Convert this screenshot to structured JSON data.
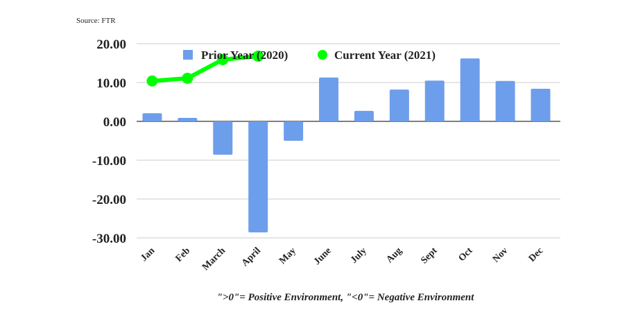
{
  "source": "Source: FTR",
  "footnote": "\">0\"= Positive Environment, \"<0\"= Negative Environment",
  "chart_data": {
    "type": "bar",
    "categories": [
      "Jan",
      "Feb",
      "March",
      "April",
      "May",
      "June",
      "July",
      "Aug",
      "Sept",
      "Oct",
      "Nov",
      "Dec"
    ],
    "series": [
      {
        "name": "Prior Year (2020)",
        "type": "bar",
        "color": "#6d9eeb",
        "values": [
          2.1,
          0.9,
          -8.6,
          -28.6,
          -5.0,
          11.3,
          2.7,
          8.2,
          10.5,
          16.2,
          10.4,
          8.4
        ]
      },
      {
        "name": "Current Year (2021)",
        "type": "line",
        "color": "#00ff00",
        "values": [
          10.4,
          11.1,
          15.9,
          16.8,
          null,
          null,
          null,
          null,
          null,
          null,
          null,
          null
        ]
      }
    ],
    "yticks": [
      "20.00",
      "10.00",
      "0.00",
      "-10.00",
      "-20.00",
      "-30.00"
    ],
    "ylim": [
      -30,
      20
    ],
    "grid": true,
    "legend": "top"
  }
}
